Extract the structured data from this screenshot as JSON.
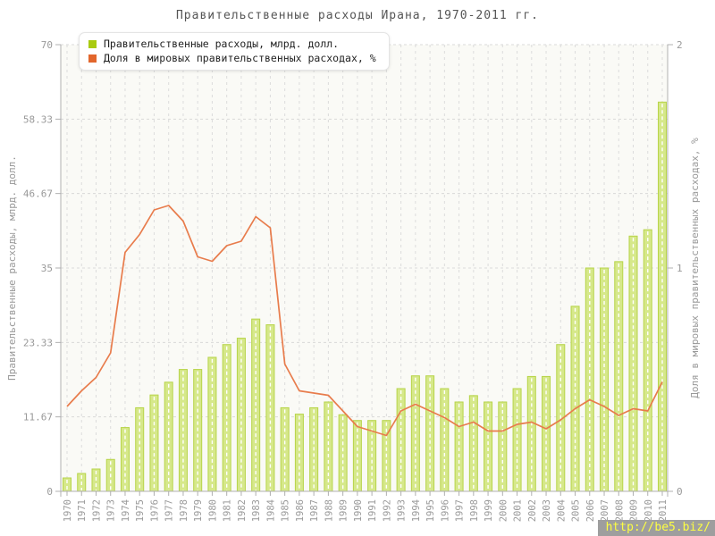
{
  "title": "Правительственные расходы Ирана, 1970-2011 гг.",
  "legend": {
    "items": [
      {
        "label": "Правительственные расходы, млрд. долл.",
        "color": "#a9cb10"
      },
      {
        "label": "Доля в мировых правительственных расходах, %",
        "color": "#e2662c"
      }
    ]
  },
  "watermark": {
    "text": "http://be5.biz/",
    "bg": "#9e9e9e",
    "fg": "#fdff42"
  },
  "chart_data": {
    "type": "bar",
    "title": "Правительственные расходы Ирана, 1970-2011 гг.",
    "categories": [
      "1970",
      "1971",
      "1972",
      "1973",
      "1974",
      "1975",
      "1976",
      "1977",
      "1978",
      "1979",
      "1980",
      "1981",
      "1982",
      "1983",
      "1984",
      "1985",
      "1986",
      "1987",
      "1988",
      "1989",
      "1990",
      "1991",
      "1992",
      "1993",
      "1994",
      "1995",
      "1996",
      "1997",
      "1998",
      "1999",
      "2000",
      "2001",
      "2002",
      "2003",
      "2004",
      "2005",
      "2006",
      "2007",
      "2008",
      "2009",
      "2010",
      "2011"
    ],
    "series": [
      {
        "name": "Правительственные расходы, млрд. долл.",
        "type": "bar",
        "axis": "left",
        "fill": "#d6e88a",
        "stroke": "#b7d449",
        "values": [
          2.1,
          2.8,
          3.5,
          5.0,
          10.0,
          13.1,
          15.1,
          17.1,
          19.1,
          19.1,
          21.0,
          23.0,
          24.0,
          27.0,
          26.1,
          13.1,
          12.1,
          13.1,
          14.0,
          12.0,
          11.1,
          11.1,
          11.1,
          16.1,
          18.1,
          18.1,
          16.1,
          14.0,
          15.0,
          14.0,
          14.0,
          16.1,
          18.0,
          18.0,
          23.0,
          29.0,
          35.0,
          35.0,
          36.0,
          40.0,
          41.0,
          61.0
        ]
      },
      {
        "name": "Доля в мировых правительственных расходах, %",
        "type": "line",
        "axis": "right",
        "color": "#e87c4c",
        "values": [
          0.38,
          0.45,
          0.51,
          0.62,
          1.07,
          1.15,
          1.26,
          1.28,
          1.21,
          1.05,
          1.03,
          1.1,
          1.12,
          1.23,
          1.18,
          0.57,
          0.45,
          0.44,
          0.43,
          0.36,
          0.29,
          0.27,
          0.25,
          0.36,
          0.39,
          0.36,
          0.33,
          0.29,
          0.31,
          0.27,
          0.27,
          0.3,
          0.31,
          0.28,
          0.32,
          0.37,
          0.41,
          0.38,
          0.34,
          0.37,
          0.36,
          0.49
        ]
      }
    ],
    "left_axis": {
      "label": "Правительственные расходы, млрд. долл.",
      "min": 0,
      "max": 70,
      "ticks": [
        0,
        11.67,
        23.33,
        35,
        46.67,
        58.33,
        70
      ],
      "tick_labels": [
        "0",
        "11.67",
        "23.33",
        "35",
        "46.67",
        "58.33",
        "70"
      ]
    },
    "right_axis": {
      "label": "Доля в мировых правительственных расходах, %",
      "min": 0,
      "max": 2,
      "ticks": [
        0,
        1,
        2
      ],
      "tick_labels": [
        "0",
        "1",
        "2"
      ]
    },
    "grid": true,
    "legend_position": "top-left"
  }
}
